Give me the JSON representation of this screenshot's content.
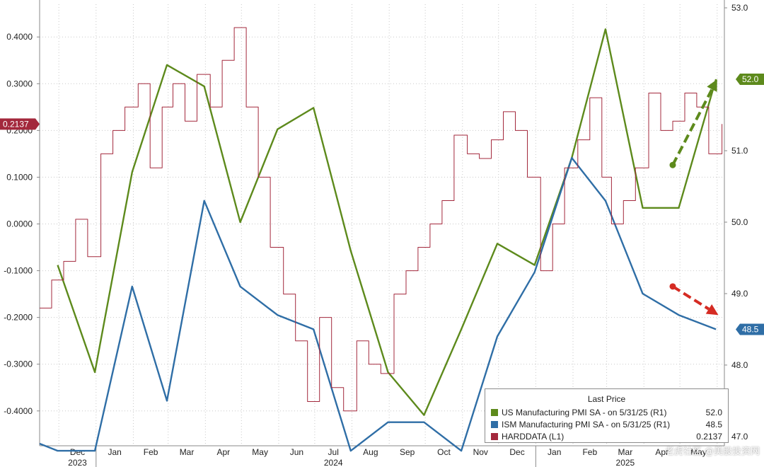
{
  "chart_data": {
    "type": "line",
    "legend": {
      "title": "Last Price",
      "placement": "bottom-right",
      "entries": [
        {
          "label": "US Manufacturing PMI SA -  on 5/31/25  (R1)",
          "value": "52.0",
          "color": "#5d8a1c"
        },
        {
          "label": "ISM Manufacturing PMI SA -  on 5/31/25  (R1)",
          "value": "48.5",
          "color": "#2f6ea6"
        },
        {
          "label": "HARDDATA  (L1)",
          "value": "0.2137",
          "color": "#a3283c"
        }
      ]
    },
    "x_axis": {
      "months": [
        "Dec",
        "Jan",
        "Feb",
        "Mar",
        "Apr",
        "May",
        "Jun",
        "Jul",
        "Aug",
        "Sep",
        "Oct",
        "Nov",
        "Dec",
        "Jan",
        "Feb",
        "Mar",
        "Apr",
        "May"
      ],
      "years": [
        {
          "label": "2023",
          "month_index": 0
        },
        {
          "label": "2024",
          "month_index": 7
        },
        {
          "label": "2025",
          "month_index": 15
        }
      ],
      "range": [
        "2023-11-15",
        "2025-06-07"
      ]
    },
    "left_axis": {
      "range": [
        -0.47,
        0.47
      ],
      "ticks": [
        0.4,
        0.3,
        0.2,
        0.1,
        0.0,
        -0.1,
        -0.2,
        -0.3,
        -0.4
      ],
      "tick_labels": [
        "0.4000",
        "0.3000",
        "0.2000",
        "0.1000",
        "0.0000",
        "-0.1000",
        "-0.2000",
        "-0.3000",
        "-0.4000"
      ]
    },
    "right_axis": {
      "range": [
        46.9,
        53.05
      ],
      "ticks": [
        53.0,
        51.0,
        50.0,
        49.0,
        48.0,
        47.0
      ],
      "tick_labels": [
        "53.0",
        "51.0",
        "50.0",
        "49.0",
        "48.0",
        "47.0"
      ]
    },
    "grid": true,
    "series": [
      {
        "name": "US Manufacturing PMI SA",
        "axis": "right",
        "color": "#5d8a1c",
        "last_value_label": "52.0",
        "x": [
          "2023-11-30",
          "2023-12-31",
          "2024-01-31",
          "2024-02-29",
          "2024-03-31",
          "2024-04-30",
          "2024-05-31",
          "2024-06-30",
          "2024-07-31",
          "2024-08-31",
          "2024-09-30",
          "2024-10-31",
          "2024-11-30",
          "2024-12-31",
          "2025-01-31",
          "2025-02-28",
          "2025-03-31",
          "2025-04-30",
          "2025-05-31"
        ],
        "y": [
          49.4,
          47.9,
          50.7,
          52.2,
          51.9,
          50.0,
          51.3,
          51.6,
          49.6,
          47.9,
          47.3,
          48.5,
          49.7,
          49.4,
          50.9,
          52.7,
          50.2,
          50.2,
          52.0
        ]
      },
      {
        "name": "ISM Manufacturing PMI SA",
        "axis": "right",
        "color": "#2f6ea6",
        "last_value_label": "48.5",
        "x": [
          "2023-11-15",
          "2023-11-30",
          "2023-12-31",
          "2024-01-31",
          "2024-02-29",
          "2024-03-31",
          "2024-04-30",
          "2024-05-31",
          "2024-06-30",
          "2024-07-31",
          "2024-08-31",
          "2024-09-30",
          "2024-10-31",
          "2024-11-30",
          "2024-12-31",
          "2025-01-31",
          "2025-02-28",
          "2025-03-31",
          "2025-04-30",
          "2025-05-31"
        ],
        "y": [
          46.9,
          46.8,
          46.8,
          49.1,
          47.5,
          50.3,
          49.1,
          48.7,
          48.5,
          46.8,
          47.2,
          47.2,
          46.8,
          48.4,
          49.3,
          50.9,
          50.3,
          49.0,
          48.7,
          48.5
        ]
      },
      {
        "name": "HARDDATA",
        "axis": "left",
        "color": "#a3283c",
        "last_value_label": "0.2137",
        "x": [
          "2023-11-15",
          "2023-11-25",
          "2023-12-05",
          "2023-12-15",
          "2023-12-25",
          "2024-01-05",
          "2024-01-15",
          "2024-01-25",
          "2024-02-05",
          "2024-02-15",
          "2024-02-25",
          "2024-03-05",
          "2024-03-15",
          "2024-03-25",
          "2024-04-05",
          "2024-04-15",
          "2024-04-25",
          "2024-05-05",
          "2024-05-15",
          "2024-05-25",
          "2024-06-05",
          "2024-06-15",
          "2024-06-25",
          "2024-07-05",
          "2024-07-15",
          "2024-07-25",
          "2024-08-05",
          "2024-08-15",
          "2024-08-25",
          "2024-09-05",
          "2024-09-15",
          "2024-09-25",
          "2024-10-05",
          "2024-10-15",
          "2024-10-25",
          "2024-11-05",
          "2024-11-15",
          "2024-11-25",
          "2024-12-05",
          "2024-12-15",
          "2024-12-25",
          "2025-01-05",
          "2025-01-15",
          "2025-01-25",
          "2025-02-05",
          "2025-02-15",
          "2025-02-25",
          "2025-03-05",
          "2025-03-15",
          "2025-03-25",
          "2025-04-05",
          "2025-04-15",
          "2025-04-25",
          "2025-05-05",
          "2025-05-15",
          "2025-05-25",
          "2025-06-05"
        ],
        "y": [
          -0.18,
          -0.12,
          -0.08,
          0.01,
          -0.07,
          0.15,
          0.2,
          0.25,
          0.3,
          0.12,
          0.25,
          0.3,
          0.22,
          0.32,
          0.25,
          0.35,
          0.42,
          0.25,
          0.1,
          -0.05,
          -0.15,
          -0.25,
          -0.38,
          -0.2,
          -0.35,
          -0.4,
          -0.25,
          -0.3,
          -0.32,
          -0.15,
          -0.1,
          -0.05,
          0.0,
          0.05,
          0.19,
          0.15,
          0.14,
          0.18,
          0.24,
          0.2,
          0.1,
          -0.1,
          0.0,
          0.12,
          0.18,
          0.27,
          0.1,
          -0.0,
          0.05,
          0.12,
          0.28,
          0.2,
          0.22,
          0.28,
          0.25,
          0.15,
          0.2137
        ]
      }
    ],
    "annotations": [
      {
        "type": "dashed-arrow",
        "color": "#5d8a1c",
        "from": {
          "x": "2025-04-25",
          "y": 50.8
        },
        "to": {
          "x": "2025-06-01",
          "y": 52.0
        }
      },
      {
        "type": "dashed-arrow",
        "color": "#d52b23",
        "from": {
          "x": "2025-04-25",
          "y": 49.1
        },
        "to": {
          "x": "2025-06-02",
          "y": 48.7
        }
      }
    ]
  },
  "watermark": "老虎社区 @美股投资网"
}
